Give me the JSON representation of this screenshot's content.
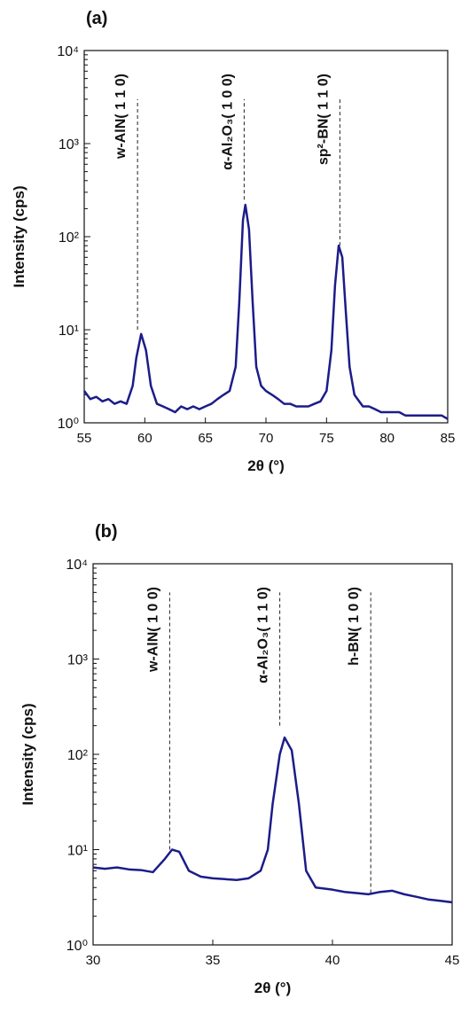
{
  "chart_data": [
    {
      "type": "line",
      "title": "(a)",
      "xlabel": "2θ (°)",
      "ylabel": "Intensity (cps)",
      "log_y": true,
      "xlim": [
        55,
        85
      ],
      "xticks": [
        55,
        60,
        65,
        70,
        75,
        80,
        85
      ],
      "ylim": [
        1,
        10000
      ],
      "yticks": [
        {
          "value": 1,
          "label": "10⁰"
        },
        {
          "value": 10,
          "label": "10¹"
        },
        {
          "value": 100,
          "label": "10²"
        },
        {
          "value": 1000,
          "label": "10³"
        },
        {
          "value": 10000,
          "label": "10⁴"
        }
      ],
      "annotations": [
        {
          "text": "w-AlN( 1 1 0)",
          "x": 59.4,
          "y": [
            10,
            3000
          ]
        },
        {
          "text": "α-Al₂O₃( 1 0 0)",
          "x": 68.2,
          "y": [
            250,
            3000
          ]
        },
        {
          "text": "sp²-BN( 1 1 0)",
          "x": 76.1,
          "y": [
            80,
            3000
          ]
        }
      ],
      "series": [
        {
          "color": "#1c1c8a",
          "x": [
            55,
            55.5,
            56,
            56.5,
            57,
            57.5,
            58,
            58.5,
            59,
            59.3,
            59.7,
            60.1,
            60.5,
            61,
            61.5,
            62,
            62.5,
            63,
            63.5,
            64,
            64.5,
            65,
            65.5,
            66,
            66.5,
            67,
            67.5,
            67.8,
            68.1,
            68.3,
            68.6,
            68.9,
            69.2,
            69.6,
            70,
            70.5,
            71,
            71.5,
            72,
            72.5,
            73,
            73.5,
            74,
            74.5,
            75,
            75.4,
            75.7,
            76,
            76.3,
            76.6,
            76.9,
            77.3,
            78,
            78.5,
            79,
            79.5,
            80,
            80.5,
            81,
            81.5,
            82,
            82.5,
            83,
            83.5,
            84,
            84.5,
            85
          ],
          "values": [
            2.2,
            1.8,
            1.9,
            1.7,
            1.8,
            1.6,
            1.7,
            1.6,
            2.5,
            5,
            9,
            6,
            2.5,
            1.6,
            1.5,
            1.4,
            1.3,
            1.5,
            1.4,
            1.5,
            1.4,
            1.5,
            1.6,
            1.8,
            2.0,
            2.2,
            4,
            20,
            150,
            220,
            120,
            20,
            4,
            2.5,
            2.2,
            2.0,
            1.8,
            1.6,
            1.6,
            1.5,
            1.5,
            1.5,
            1.6,
            1.7,
            2.2,
            6,
            30,
            80,
            60,
            15,
            4,
            2,
            1.5,
            1.5,
            1.4,
            1.3,
            1.3,
            1.3,
            1.3,
            1.2,
            1.2,
            1.2,
            1.2,
            1.2,
            1.2,
            1.2,
            1.1
          ]
        }
      ]
    },
    {
      "type": "line",
      "title": "(b)",
      "xlabel": "2θ (°)",
      "ylabel": "Intensity (cps)",
      "log_y": true,
      "xlim": [
        30,
        45
      ],
      "xticks": [
        30,
        35,
        40,
        45
      ],
      "ylim": [
        1,
        10000
      ],
      "yticks": [
        {
          "value": 1,
          "label": "10⁰"
        },
        {
          "value": 10,
          "label": "10¹"
        },
        {
          "value": 100,
          "label": "10²"
        },
        {
          "value": 1000,
          "label": "10³"
        },
        {
          "value": 10000,
          "label": "10⁴"
        }
      ],
      "annotations": [
        {
          "text": "w-AlN( 1 0 0)",
          "x": 33.2,
          "y": [
            10,
            5000
          ]
        },
        {
          "text": "α-Al₂O₃( 1 1 0)",
          "x": 37.8,
          "y": [
            200,
            5000
          ]
        },
        {
          "text": "h-BN( 1 0 0)",
          "x": 41.6,
          "y": [
            3.5,
            5000
          ]
        }
      ],
      "series": [
        {
          "color": "#1c1c8a",
          "x": [
            30,
            30.5,
            31,
            31.5,
            32,
            32.5,
            33,
            33.3,
            33.6,
            34,
            34.5,
            35,
            35.5,
            36,
            36.5,
            37,
            37.3,
            37.5,
            37.8,
            38,
            38.3,
            38.6,
            38.9,
            39.3,
            40,
            40.5,
            41,
            41.5,
            42,
            42.5,
            43,
            43.5,
            44,
            44.5,
            45
          ],
          "values": [
            6.5,
            6.3,
            6.5,
            6.2,
            6.1,
            5.8,
            8,
            10,
            9.5,
            6,
            5.2,
            5,
            4.9,
            4.8,
            5,
            6,
            10,
            30,
            100,
            150,
            110,
            30,
            6,
            4,
            3.8,
            3.6,
            3.5,
            3.4,
            3.6,
            3.7,
            3.4,
            3.2,
            3.0,
            2.9,
            2.8
          ]
        }
      ]
    }
  ]
}
